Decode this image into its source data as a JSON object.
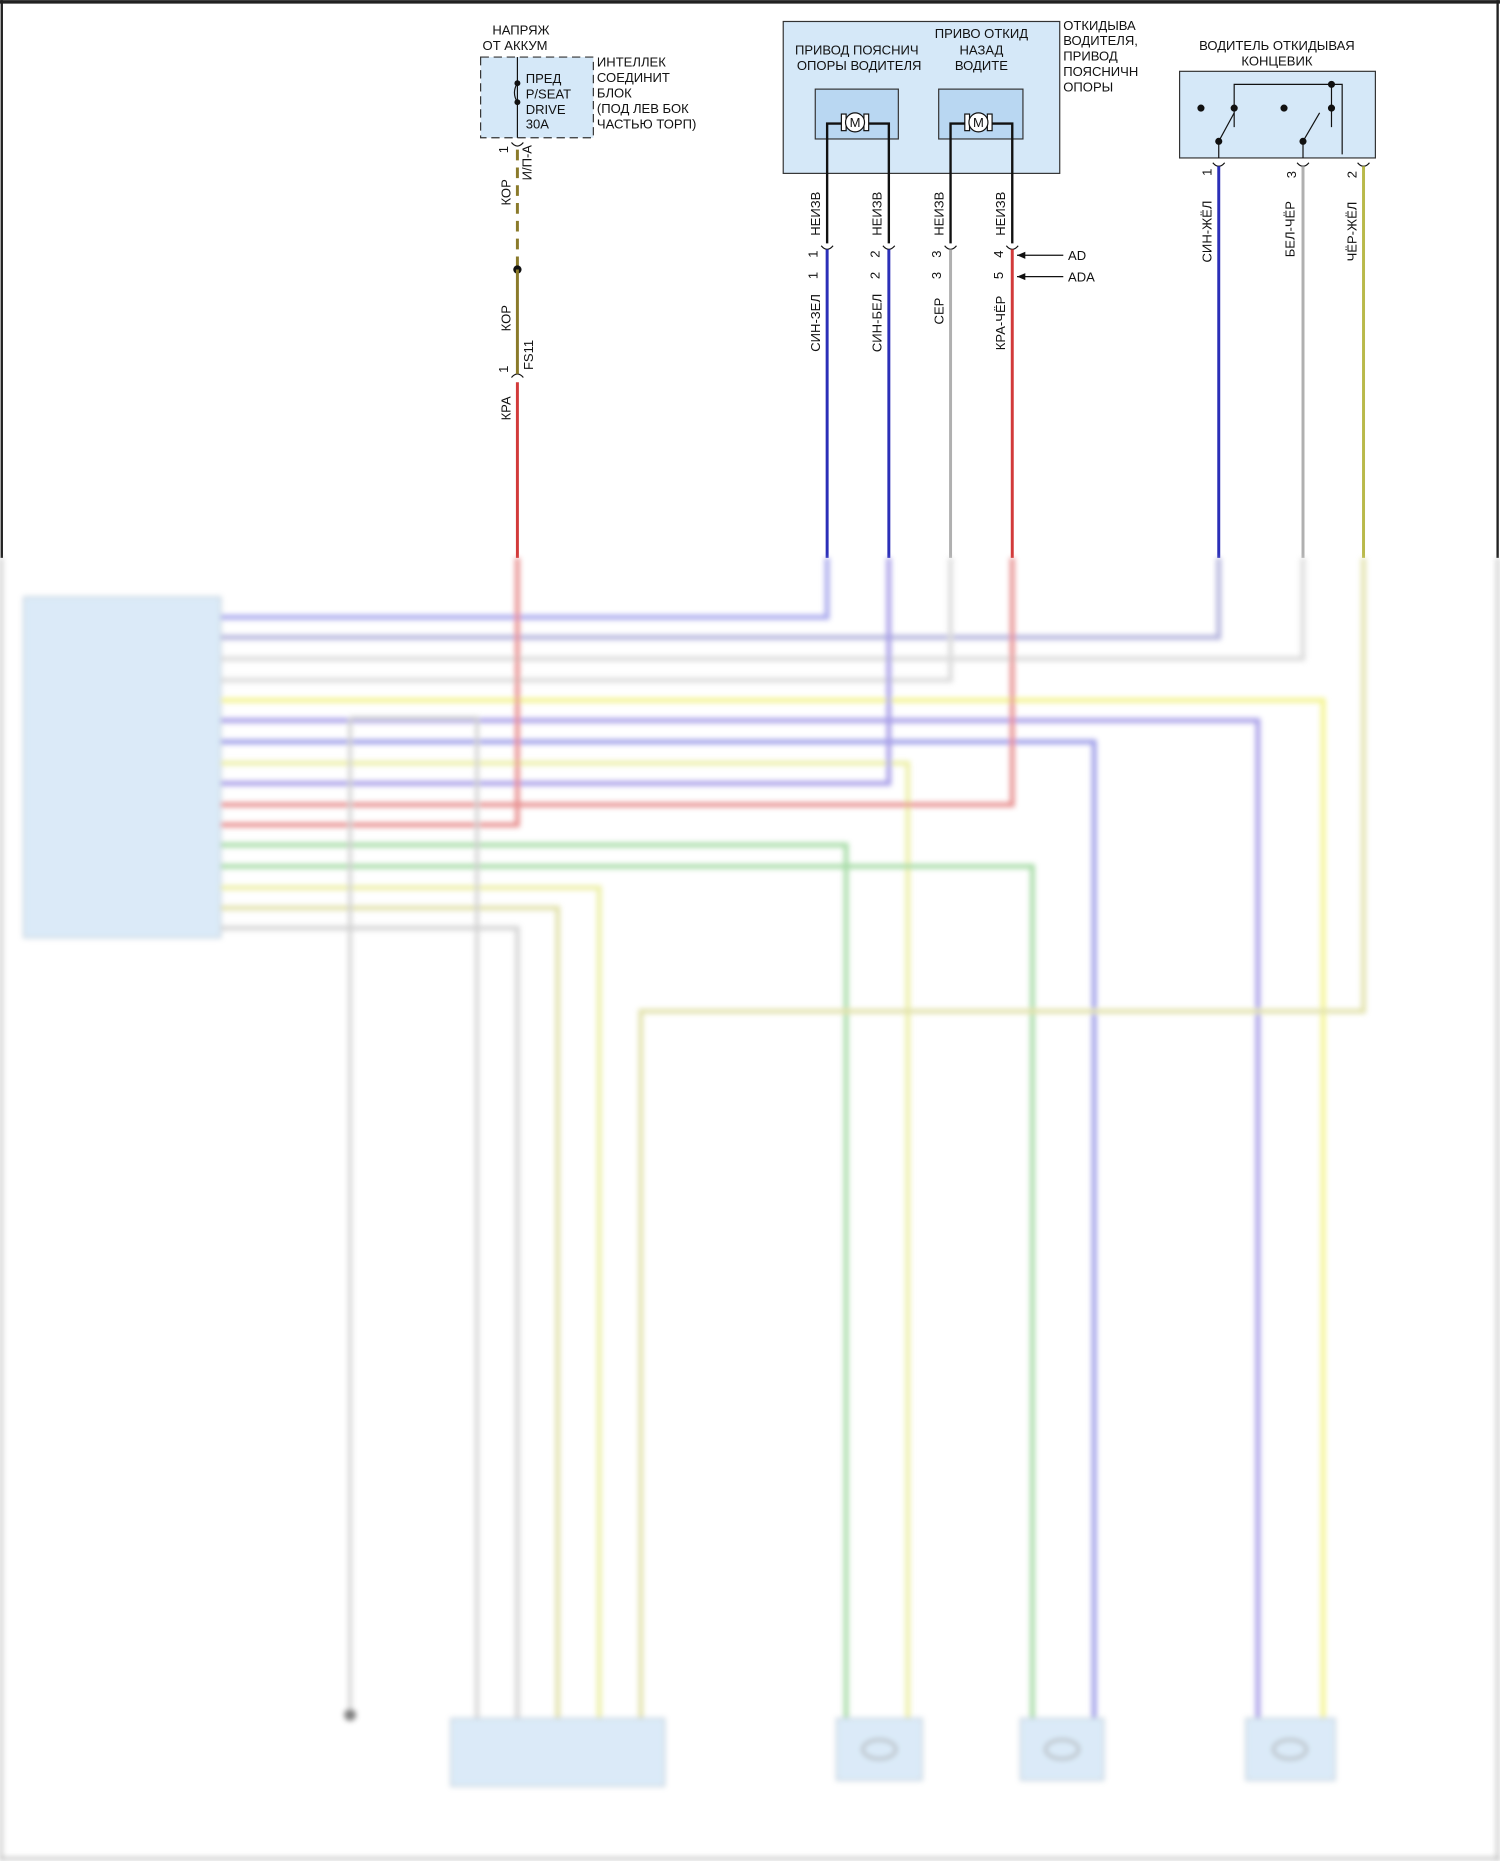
{
  "battery": {
    "line1": "НАПРЯЖ",
    "line2": "ОТ АККУМ"
  },
  "fuse": {
    "lines": [
      "ПРЕД",
      "P/SEAT",
      "DRIVE",
      "30A"
    ]
  },
  "junction_block": {
    "lines": [
      "ИНТЕЛЛЕК",
      "СОЕДИНИТ",
      "БЛОК",
      "(ПОД ЛЕВ БОК",
      "ЧАСТЬЮ ТОРП)"
    ]
  },
  "power_wire": {
    "pin_top": "1",
    "connector_top": "И/П-А",
    "color_top": "КОР",
    "color_mid": "КОР",
    "pin_bottom": "1",
    "connector_bottom": "FS11",
    "color_bottom": "КРА"
  },
  "actuator_assembly": {
    "lumbar_title": [
      "ПРИВОД ПОЯСНИЧ",
      "ОПОРЫ ВОДИТЕЛЯ"
    ],
    "recline_title": [
      "ПРИВО ОТКИД",
      "НАЗАД",
      "ВОДИТЕ"
    ],
    "side_label": [
      "ОТКИДЫВА",
      "ВОДИТЕЛЯ,",
      "ПРИВОД",
      "ПОЯСНИЧН",
      "ОПОРЫ"
    ],
    "motor_symbol": "M",
    "wires": [
      {
        "internal": "НЕИЗВ",
        "pin_a": "1",
        "pin_b": "1",
        "color": "СИН-ЗЕЛ",
        "hex": "#2b2fb8"
      },
      {
        "internal": "НЕИЗВ",
        "pin_a": "2",
        "pin_b": "2",
        "color": "СИН-БЕЛ",
        "hex": "#2b2fb8"
      },
      {
        "internal": "НЕИЗВ",
        "pin_a": "3",
        "pin_b": "3",
        "color": "СЕР",
        "hex": "#b0b0b0"
      },
      {
        "internal": "НЕИЗВ",
        "pin_a": "4",
        "pin_b": "5",
        "color": "КРА-ЧЁР",
        "hex": "#d23a3a"
      }
    ],
    "arrows": [
      "AD",
      "ADA"
    ]
  },
  "recline_switch": {
    "title": [
      "ВОДИТЕЛЬ ОТКИДЫВАЯ",
      "КОНЦЕВИК"
    ],
    "wires": [
      {
        "pin": "1",
        "color": "СИН-ЖЁЛ",
        "hex": "#2b2fb8"
      },
      {
        "pin": "3",
        "color": "БЕЛ-ЧЁР",
        "hex": "#b0b0b0"
      },
      {
        "pin": "2",
        "color": "ЧЁР-ЖЁЛ",
        "hex": "#b9b94a"
      }
    ]
  },
  "colors": {
    "panel": "#d5e8f8",
    "red": "#d23a3a",
    "blue": "#2b2fb8",
    "gray": "#b0b0b0",
    "olive": "#b9b94a",
    "tan": "#8a7a2a",
    "yellow": "#f0f06a",
    "purple": "#8a7ee0",
    "green": "#8ad08a"
  }
}
